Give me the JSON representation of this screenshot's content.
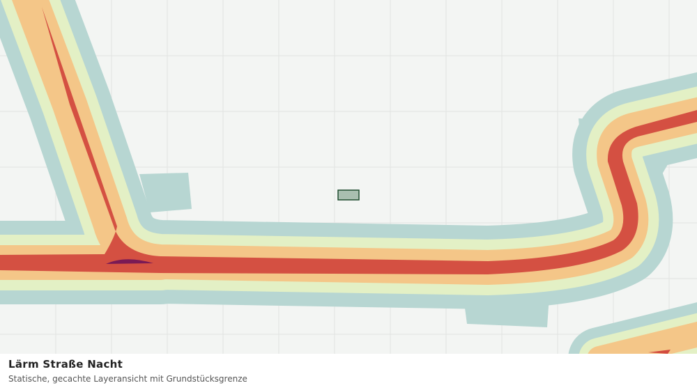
{
  "header": {
    "title": "Lärm Straße Nacht",
    "subtitle": "Statische, gecachte Layeransicht mit Grundstücksgrenze"
  }
}
